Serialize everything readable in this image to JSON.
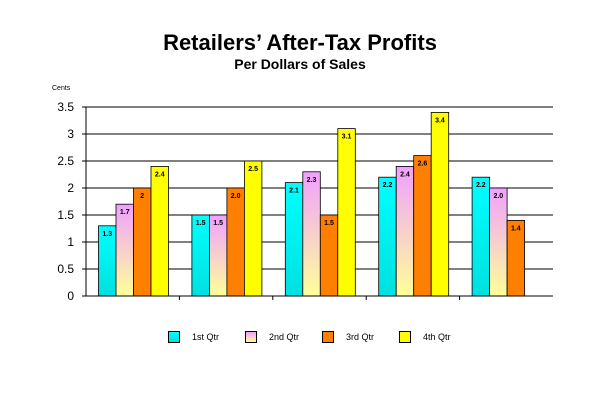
{
  "chart_data": {
    "type": "bar",
    "title": "Retailers’ After-Tax Profits",
    "subtitle": "Per Dollars of Sales",
    "ylabel": "Cents",
    "xlabel": "",
    "categories": [
      "",
      "",
      "",
      "",
      ""
    ],
    "ylim": [
      0,
      3.5
    ],
    "yticks": [
      "0",
      "0.5",
      "1",
      "1.5",
      "2",
      "2.5",
      "3",
      "3.5"
    ],
    "grid": true,
    "legend_position": "bottom",
    "series": [
      {
        "name": "1st Qtr",
        "color_top": "#00ffff",
        "color_bottom": "#00e0e0",
        "values": [
          1.3,
          1.5,
          2.1,
          2.2,
          2.2
        ],
        "labels": [
          "1.3",
          "1.5",
          "2.1",
          "2.2",
          "2.2"
        ]
      },
      {
        "name": "2nd Qtr",
        "color_top": "#f0a0ff",
        "color_bottom": "#ffff99",
        "values": [
          1.7,
          1.5,
          2.3,
          2.4,
          2.0
        ],
        "labels": [
          "1.7",
          "1.5",
          "2.3",
          "2.4",
          "2.0"
        ]
      },
      {
        "name": "3rd Qtr",
        "color_top": "#ff7f00",
        "color_bottom": "#ff7f00",
        "values": [
          2.0,
          2.0,
          1.5,
          2.6,
          1.4
        ],
        "labels": [
          "2",
          "2.0",
          "1.5",
          "2.6",
          "1.4"
        ]
      },
      {
        "name": "4th Qtr",
        "color_top": "#ffff00",
        "color_bottom": "#ffff00",
        "values": [
          2.4,
          2.5,
          3.1,
          3.4,
          null
        ],
        "labels": [
          "2.4",
          "2.5",
          "3.1",
          "3.4",
          ""
        ]
      }
    ]
  }
}
